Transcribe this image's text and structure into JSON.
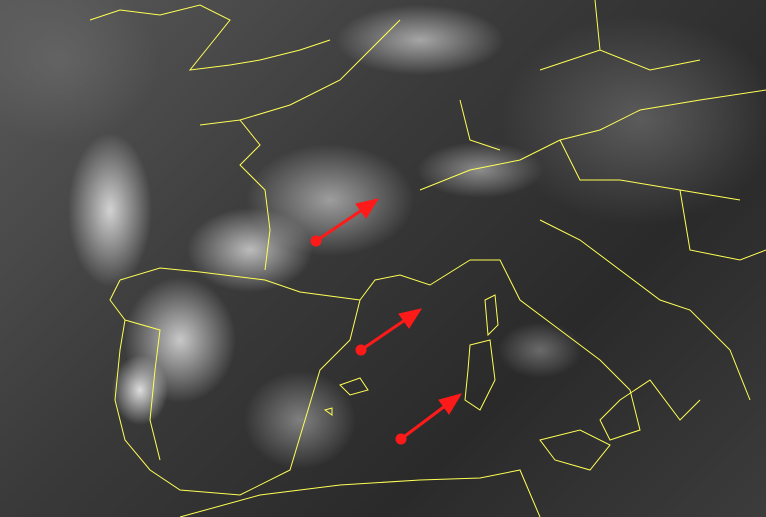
{
  "colors": {
    "borders": "#ffff55",
    "arrows": "#ff1a1a"
  },
  "arrows": [
    {
      "name": "arrow-france"
    },
    {
      "name": "arrow-gulf-of-lion"
    },
    {
      "name": "arrow-balearic-sea"
    }
  ]
}
